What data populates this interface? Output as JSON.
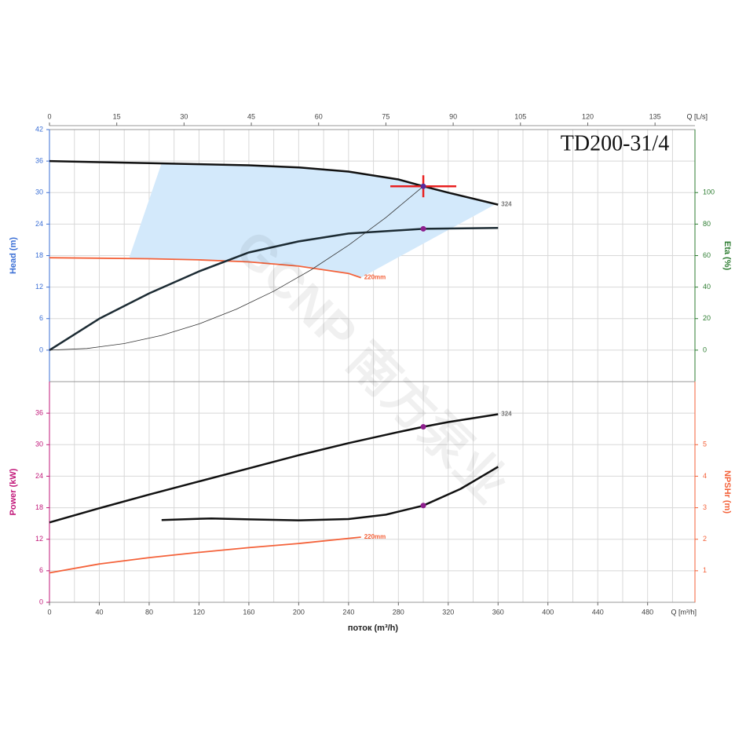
{
  "watermark": "GCNP 南方泵业",
  "chart_data": [
    {
      "type": "line",
      "title": "TD200-31/4",
      "xlim": [
        0,
        518
      ],
      "xticks": [
        0,
        40,
        80,
        120,
        160,
        200,
        240,
        280,
        320,
        360,
        400,
        440,
        480
      ],
      "xgrid_minor": [
        20,
        60,
        100,
        140,
        180,
        220,
        260,
        300,
        340,
        380,
        420,
        460,
        500
      ],
      "x2lim": [
        0,
        143.9
      ],
      "x2ticks": [
        0,
        15,
        30,
        45,
        60,
        75,
        90,
        105,
        120,
        135
      ],
      "x2label": "Q [L/s]",
      "ylim": [
        -6,
        42
      ],
      "yticks": [
        0,
        6,
        12,
        18,
        24,
        30,
        36,
        42
      ],
      "ylabel": "Head (m)",
      "ycolor": "#3b6fd6",
      "y2lim": [
        -20,
        140
      ],
      "y2ticks": [
        0,
        20,
        40,
        60,
        80,
        100
      ],
      "y2label": "Eta (%)",
      "y2color": "#2e7d32",
      "region": {
        "color": "#d3e9fb",
        "x": [
          90,
          120,
          160,
          200,
          240,
          280,
          300,
          320,
          358,
          250,
          240,
          200,
          160,
          120,
          80,
          64
        ],
        "values": [
          35.6,
          35.4,
          35.2,
          34.8,
          34.0,
          32.5,
          31.2,
          30.0,
          27.8,
          13.8,
          14.6,
          16.0,
          16.8,
          17.2,
          17.4,
          17.6
        ]
      },
      "series": [
        {
          "name": "324",
          "color": "#111111",
          "line_width": 2.5,
          "x": [
            0,
            40,
            80,
            120,
            160,
            200,
            240,
            280,
            300,
            320,
            360
          ],
          "values": [
            36.0,
            35.8,
            35.6,
            35.4,
            35.2,
            34.8,
            34.0,
            32.5,
            31.2,
            30.0,
            27.7
          ]
        },
        {
          "name": "220mm",
          "color": "#f4623a",
          "line_width": 1.8,
          "x": [
            0,
            40,
            80,
            120,
            160,
            200,
            240,
            250
          ],
          "values": [
            17.6,
            17.5,
            17.4,
            17.2,
            16.8,
            16.0,
            14.6,
            13.8
          ]
        },
        {
          "color": "#1c2b33",
          "line_width": 2.5,
          "axis": "y2",
          "x": [
            0,
            40,
            80,
            120,
            160,
            200,
            240,
            280,
            300,
            360
          ],
          "values": [
            0,
            20,
            36,
            50,
            62,
            69,
            74,
            76,
            77,
            77.6
          ]
        },
        {
          "color": "#333333",
          "line_width": 0.8,
          "x": [
            0,
            30,
            60,
            90,
            120,
            150,
            180,
            210,
            240,
            270,
            300
          ],
          "values": [
            0,
            0.31,
            1.25,
            2.81,
            4.99,
            7.8,
            11.23,
            15.29,
            19.97,
            25.27,
            31.2
          ]
        }
      ],
      "points": [
        {
          "x": 300,
          "value": 77,
          "axis": "y2",
          "color": "#8e1f8e"
        }
      ],
      "operating_point": {
        "x": 300,
        "value": 31.2,
        "color": "#e82020",
        "dot_color": "#5a2a9a"
      }
    },
    {
      "type": "line",
      "xlim": [
        0,
        518
      ],
      "xticks": [
        0,
        40,
        80,
        120,
        160,
        200,
        240,
        280,
        320,
        360,
        400,
        440,
        480
      ],
      "xgrid_minor": [
        20,
        60,
        100,
        140,
        180,
        220,
        260,
        300,
        340,
        380,
        420,
        460,
        500
      ],
      "xlabel": "поток (m³/h)",
      "xunit": "Q [m³/h]",
      "ylim": [
        0,
        42
      ],
      "yticks": [
        0,
        6,
        12,
        18,
        24,
        30,
        36
      ],
      "ylabel": "Power (kW)",
      "ycolor": "#c2187a",
      "y2lim": [
        0,
        7
      ],
      "y2ticks": [
        1,
        2,
        3,
        4,
        5
      ],
      "y2label": "NPSHr (m)",
      "y2color": "#f4623a",
      "series": [
        {
          "name": "324",
          "color": "#111111",
          "line_width": 2.5,
          "x": [
            0,
            40,
            80,
            120,
            160,
            200,
            240,
            280,
            300,
            320,
            360
          ],
          "values": [
            15.2,
            17.9,
            20.5,
            23.0,
            25.5,
            28.0,
            30.3,
            32.4,
            33.4,
            34.3,
            35.8
          ]
        },
        {
          "name": "220mm",
          "color": "#f4623a",
          "line_width": 1.8,
          "x": [
            0,
            40,
            80,
            120,
            160,
            200,
            250
          ],
          "values": [
            5.6,
            7.3,
            8.5,
            9.5,
            10.4,
            11.2,
            12.4
          ]
        },
        {
          "color": "#111111",
          "line_width": 2.5,
          "axis": "y2",
          "x": [
            90,
            130,
            160,
            200,
            240,
            270,
            300,
            330,
            360
          ],
          "values": [
            2.61,
            2.66,
            2.63,
            2.6,
            2.64,
            2.78,
            3.07,
            3.6,
            4.3
          ]
        }
      ],
      "points": [
        {
          "x": 300,
          "value": 33.4,
          "color": "#8e1f8e"
        },
        {
          "x": 300,
          "value": 3.07,
          "axis": "y2",
          "color": "#8e1f8e"
        }
      ]
    }
  ]
}
